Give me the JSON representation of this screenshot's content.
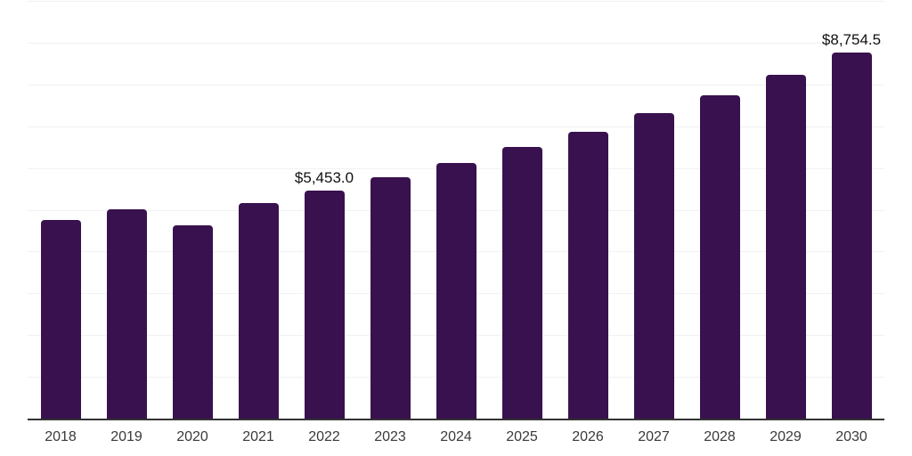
{
  "chart_data": {
    "type": "bar",
    "title": "",
    "xlabel": "",
    "ylabel": "",
    "categories": [
      "2018",
      "2019",
      "2020",
      "2021",
      "2022",
      "2023",
      "2024",
      "2025",
      "2026",
      "2027",
      "2028",
      "2029",
      "2030"
    ],
    "values": [
      4750,
      5010,
      4620,
      5155,
      5453.0,
      5775,
      6115,
      6495,
      6860,
      7305,
      7730,
      8220,
      8754.5
    ],
    "data_labels": {
      "2022": "$5,453.0",
      "2030": "$8,754.5"
    },
    "ylim": [
      0,
      10000
    ],
    "gridline_count": 10,
    "grid": true,
    "legend_position": "none",
    "colors": {
      "bar": "#38114E",
      "gridline": "#f1f1f1",
      "axis_line": "#333333",
      "tick_label": "#3a3a3a",
      "data_label": "#111111",
      "background": "#ffffff"
    }
  }
}
